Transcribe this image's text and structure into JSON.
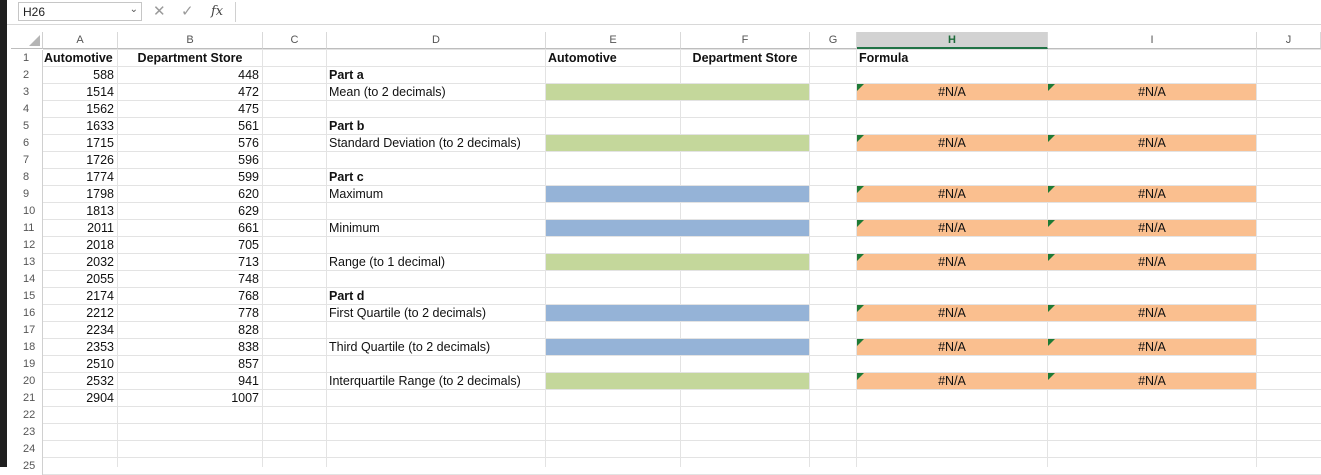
{
  "name_box": {
    "value": "H26"
  },
  "formula_bar": {
    "cancel_glyph": "✕",
    "enter_glyph": "✓",
    "fx_label": "fx",
    "value": ""
  },
  "columns": [
    "A",
    "B",
    "C",
    "D",
    "E",
    "F",
    "G",
    "H",
    "I",
    "J"
  ],
  "selected_column": "H",
  "rows": [
    "1",
    "2",
    "3",
    "4",
    "5",
    "6",
    "7",
    "8",
    "9",
    "10",
    "11",
    "12",
    "13",
    "14",
    "15",
    "16",
    "17",
    "18",
    "19",
    "20",
    "21",
    "22",
    "23",
    "24",
    "25"
  ],
  "headers": {
    "a1": "Automotive",
    "b1": "Department Store",
    "e1": "Automotive",
    "f1": "Department Store",
    "h1": "Formula"
  },
  "automotive": [
    "588",
    "1514",
    "1562",
    "1633",
    "1715",
    "1726",
    "1774",
    "1798",
    "1813",
    "2011",
    "2018",
    "2032",
    "2055",
    "2174",
    "2212",
    "2234",
    "2353",
    "2510",
    "2532",
    "2904"
  ],
  "department_store": [
    "448",
    "472",
    "475",
    "561",
    "576",
    "596",
    "599",
    "620",
    "629",
    "661",
    "705",
    "713",
    "748",
    "768",
    "778",
    "828",
    "838",
    "857",
    "941",
    "1007"
  ],
  "labels": {
    "part_a": "Part a",
    "mean": "Mean (to 2 decimals)",
    "part_b": "Part b",
    "std": "Standard Deviation (to 2 decimals)",
    "part_c": "Part c",
    "max": "Maximum",
    "min": "Minimum",
    "range": "Range (to 1 decimal)",
    "part_d": "Part d",
    "q1": "First Quartile (to 2 decimals)",
    "q3": "Third Quartile (to 2 decimals)",
    "iqr": "Interquartile Range (to 2 decimals)"
  },
  "formula_results": {
    "h3": "#N/A",
    "i3": "#N/A",
    "h6": "#N/A",
    "i6": "#N/A",
    "h9": "#N/A",
    "i9": "#N/A",
    "h11": "#N/A",
    "i11": "#N/A",
    "h13": "#N/A",
    "i13": "#N/A",
    "h16": "#N/A",
    "i16": "#N/A",
    "h18": "#N/A",
    "i18": "#N/A",
    "h20": "#N/A",
    "i20": "#N/A"
  },
  "colors": {
    "answer_green": "#c4d79b",
    "answer_blue": "#95b3d7",
    "formula_orange": "#fabf8f",
    "error_triangle": "#1e7a35",
    "selected_header": "#217346"
  }
}
